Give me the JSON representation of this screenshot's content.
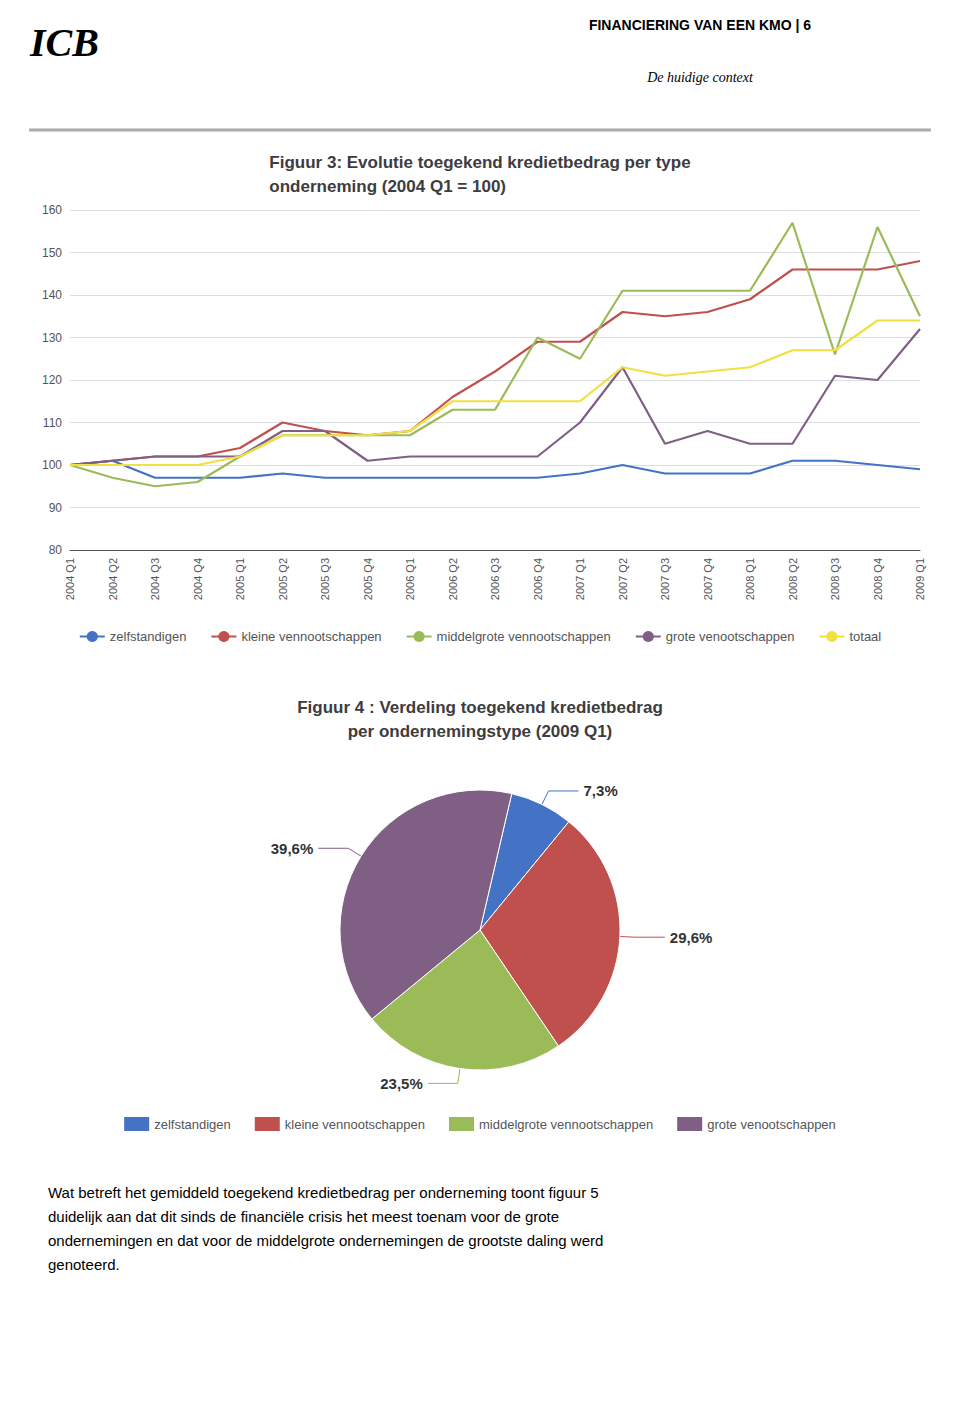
{
  "chart_data": [
    {
      "type": "line",
      "title": "Figuur 3: Evolutie toegekend kredietbedrag per type\nonderneming (2004 Q1 = 100)",
      "annotations": [
        "ICB",
        "FINANCIERING VAN EEN KMO | 6",
        "De huidige context"
      ],
      "categories": [
        "2004 Q1",
        "2004 Q2",
        "2004 Q3",
        "2004 Q4",
        "2005 Q1",
        "2005 Q2",
        "2005 Q3",
        "2005 Q4",
        "2006 Q1",
        "2006 Q2",
        "2006 Q3",
        "2006 Q4",
        "2007 Q1",
        "2007 Q2",
        "2007 Q3",
        "2007 Q4",
        "2008 Q1",
        "2008 Q2",
        "2008 Q3",
        "2008 Q4",
        "2009 Q1"
      ],
      "series": [
        {
          "name": "zelfstandigen",
          "color": "#4472C4",
          "values": [
            100,
            101,
            97,
            97,
            97,
            98,
            97,
            97,
            97,
            97,
            97,
            97,
            98,
            100,
            98,
            98,
            98,
            101,
            101,
            100,
            99
          ]
        },
        {
          "name": "kleine vennootschappen",
          "color": "#C0504D",
          "values": [
            100,
            101,
            102,
            102,
            104,
            110,
            108,
            107,
            108,
            116,
            122,
            129,
            129,
            136,
            135,
            136,
            139,
            146,
            146,
            146,
            148
          ]
        },
        {
          "name": "middelgrote vennootschappen",
          "color": "#9BBB59",
          "values": [
            100,
            97,
            95,
            96,
            102,
            107,
            107,
            107,
            107,
            113,
            113,
            130,
            125,
            141,
            141,
            141,
            141,
            157,
            126,
            156,
            135
          ]
        },
        {
          "name": "grote venootschappen",
          "color": "#7F6084",
          "values": [
            100,
            101,
            102,
            102,
            102,
            108,
            108,
            101,
            102,
            102,
            102,
            102,
            110,
            123,
            105,
            108,
            105,
            105,
            121,
            120,
            132
          ]
        },
        {
          "name": "totaal",
          "color": "#F0E040",
          "values": [
            100,
            100,
            100,
            100,
            102,
            107,
            107,
            107,
            108,
            115,
            115,
            115,
            115,
            123,
            121,
            122,
            123,
            127,
            127,
            134,
            134
          ]
        }
      ],
      "ylim": [
        80,
        160
      ],
      "yticks": [
        80,
        90,
        100,
        110,
        120,
        130,
        140,
        150,
        160
      ],
      "grid": true,
      "legend": "bottom"
    },
    {
      "type": "pie",
      "title": "Figuur 4 : Verdeling toegekend kredietbedrag\nper ondernemingstype (2009 Q1)",
      "categories": [
        "zelfstandigen",
        "kleine vennootschappen",
        "middelgrote vennootschappen",
        "grote venootschappen"
      ],
      "values": [
        7.3,
        29.6,
        23.5,
        39.6
      ],
      "value_labels": [
        "7,3%",
        "29,6%",
        "23,5%",
        "39,6%"
      ],
      "colors": [
        "#4472C4",
        "#C0504D",
        "#9BBB59",
        "#7F6084"
      ],
      "data_labels": true,
      "legend": "bottom",
      "annotations": [
        "Wat betreft het gemiddeld toegekend kredietbedrag per onderneming toont figuur 5",
        "duidelijk aan dat dit sinds de financiële crisis het meest toenam voor de grote",
        "ondernemingen en dat voor de middelgrote ondernemingen de grootste daling werd",
        "genoteerd."
      ]
    }
  ]
}
